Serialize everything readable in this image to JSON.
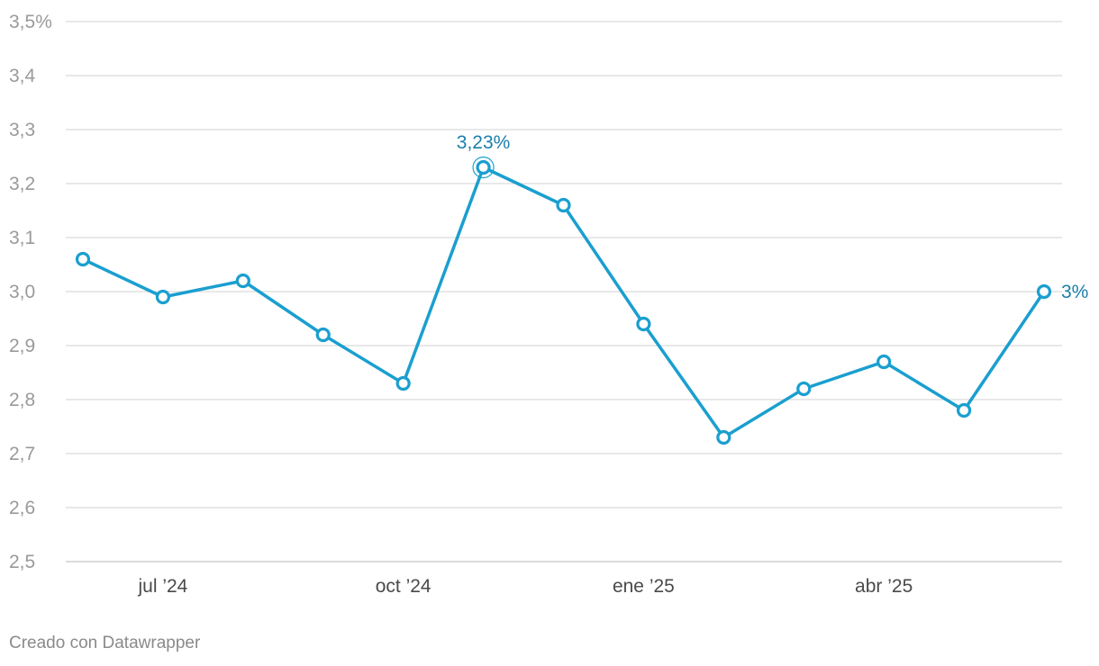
{
  "chart_data": {
    "type": "line",
    "title": "",
    "xlabel": "",
    "ylabel": "",
    "ylim": [
      2.5,
      3.5
    ],
    "y_ticks": [
      {
        "value": 2.5,
        "label": "2,5"
      },
      {
        "value": 2.6,
        "label": "2,6"
      },
      {
        "value": 2.7,
        "label": "2,7"
      },
      {
        "value": 2.8,
        "label": "2,8"
      },
      {
        "value": 2.9,
        "label": "2,9"
      },
      {
        "value": 3.0,
        "label": "3,0"
      },
      {
        "value": 3.1,
        "label": "3,1"
      },
      {
        "value": 3.2,
        "label": "3,2"
      },
      {
        "value": 3.3,
        "label": "3,3"
      },
      {
        "value": 3.4,
        "label": "3,4"
      },
      {
        "value": 3.5,
        "label": "3,5%"
      }
    ],
    "x": [
      "2024-06",
      "2024-07",
      "2024-08",
      "2024-09",
      "2024-10",
      "2024-11",
      "2024-12",
      "2025-01",
      "2025-02",
      "2025-03",
      "2025-04",
      "2025-05",
      "2025-06"
    ],
    "x_ticks": [
      {
        "x": "2024-07",
        "label": "jul ’24"
      },
      {
        "x": "2024-10",
        "label": "oct ’24"
      },
      {
        "x": "2025-01",
        "label": "ene ’25"
      },
      {
        "x": "2025-04",
        "label": "abr ’25"
      }
    ],
    "series": [
      {
        "values": [
          3.06,
          2.99,
          3.02,
          2.92,
          2.83,
          3.23,
          3.16,
          2.94,
          2.73,
          2.82,
          2.87,
          2.78,
          3.0
        ]
      }
    ],
    "annotations": [
      {
        "x": "2024-11",
        "value": 3.23,
        "text": "3,23%",
        "position": "above",
        "highlight": true
      },
      {
        "x": "2025-06",
        "value": 3.0,
        "text": "3%",
        "position": "right",
        "highlight": false
      }
    ],
    "grid": true,
    "colors": {
      "line": "#1a9fcf",
      "annotation": "#1b7fa8"
    }
  },
  "footer": {
    "credit": "Creado con Datawrapper"
  }
}
